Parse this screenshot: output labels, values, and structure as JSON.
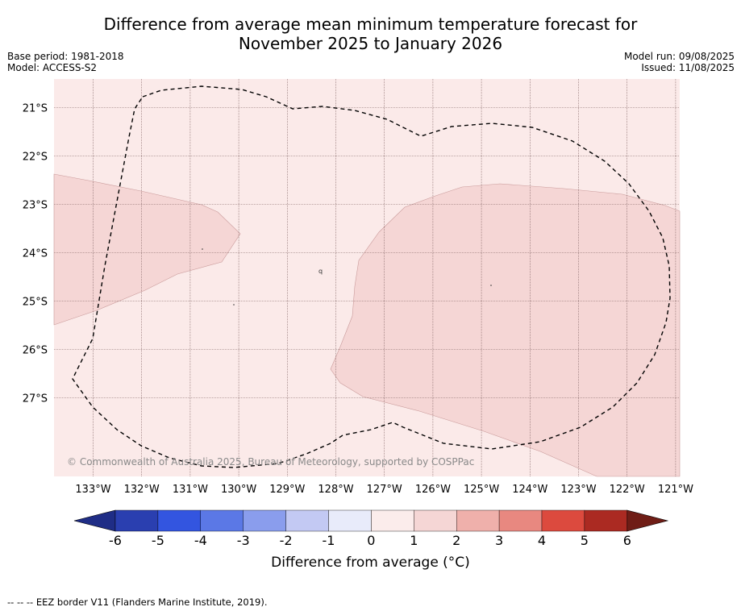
{
  "header": {
    "title_line1": "Difference from average mean minimum temperature forecast for",
    "title_line2": "November 2025 to January 2026",
    "base_period": "Base period: 1981-2018",
    "model": "Model: ACCESS-S2",
    "model_run": "Model run: 09/08/2025",
    "issued": "Issued: 11/08/2025"
  },
  "map": {
    "lat_labels": [
      "21°S",
      "22°S",
      "23°S",
      "24°S",
      "25°S",
      "26°S",
      "27°S"
    ],
    "lon_labels": [
      "133°W",
      "132°W",
      "131°W",
      "130°W",
      "129°W",
      "128°W",
      "127°W",
      "126°W",
      "125°W",
      "124°W",
      "123°W",
      "122°W",
      "121°W"
    ],
    "copyright": "© Commonwealth of Australia 2025, Bureau of Meteorology, supported by COSPPac",
    "colors": {
      "bin_0_1": "#fbeae9",
      "bin_1_2": "#f5d6d5",
      "gridline": "#7a5c5c"
    }
  },
  "colorbar": {
    "ticks": [
      "-6",
      "-5",
      "-4",
      "-3",
      "-2",
      "-1",
      "0",
      "1",
      "2",
      "3",
      "4",
      "5",
      "6"
    ],
    "colors": [
      "#1f2d86",
      "#2a3fb0",
      "#3355e0",
      "#5b78e6",
      "#8a9ded",
      "#c3c9f3",
      "#e8ebfa",
      "#fbeceb",
      "#f5d6d5",
      "#efb0ab",
      "#e88880",
      "#dc4a3e",
      "#ab2a22",
      "#6f1d16"
    ],
    "label": "Difference from average (°C)"
  },
  "footer": {
    "legend_text": "--  --  -- EEZ border V11 (Flanders Marine Institute, 2019)."
  }
}
